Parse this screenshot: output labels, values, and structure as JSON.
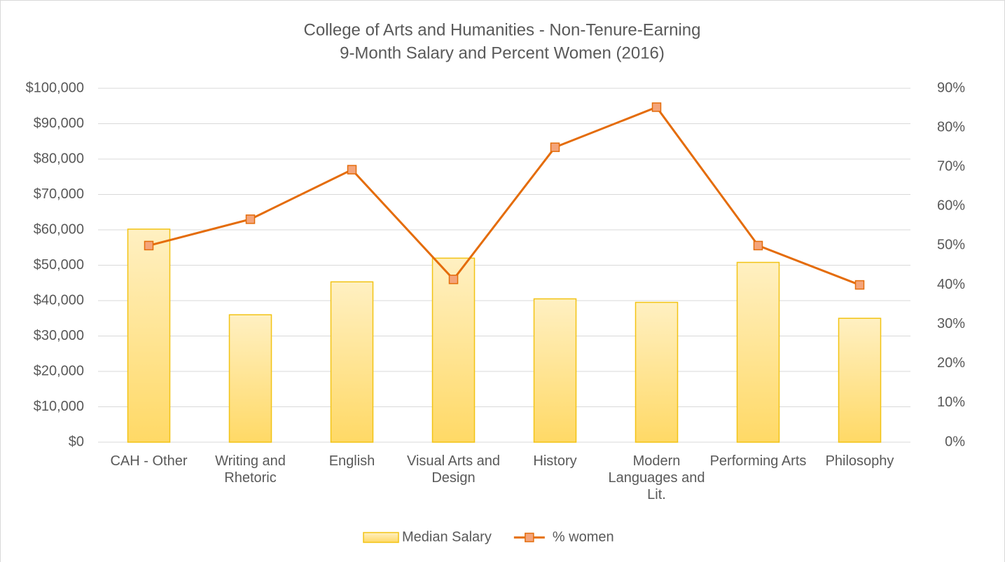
{
  "chart_data": {
    "type": "bar",
    "title": [
      "College of Arts and Humanities - Non-Tenure-Earning",
      "9-Month Salary and Percent Women (2016)"
    ],
    "categories": [
      "CAH - Other",
      "Writing and Rhetoric",
      "English",
      "Visual Arts and Design",
      "History",
      "Modern Languages and Lit.",
      "Performing Arts",
      "Philosophy"
    ],
    "series": [
      {
        "name": "Median Salary",
        "type": "bar",
        "color": "#ffd966",
        "values": [
          60200,
          36000,
          45300,
          52000,
          40500,
          39500,
          50800,
          35000
        ]
      },
      {
        "name": "% women",
        "type": "line",
        "axis": "y2",
        "color": "#e46c0a",
        "values": [
          50,
          56.7,
          69.3,
          41.4,
          75,
          85.2,
          50,
          40
        ]
      }
    ],
    "ylim": [
      0,
      100000
    ],
    "yticks": [
      {
        "value": 0,
        "label": "$0"
      },
      {
        "value": 10000,
        "label": "$10,000"
      },
      {
        "value": 20000,
        "label": "$20,000"
      },
      {
        "value": 30000,
        "label": "$30,000"
      },
      {
        "value": 40000,
        "label": "$40,000"
      },
      {
        "value": 50000,
        "label": "$50,000"
      },
      {
        "value": 60000,
        "label": "$60,000"
      },
      {
        "value": 70000,
        "label": "$70,000"
      },
      {
        "value": 80000,
        "label": "$80,000"
      },
      {
        "value": 90000,
        "label": "$90,000"
      },
      {
        "value": 100000,
        "label": "$100,000"
      }
    ],
    "y2lim": [
      0,
      90
    ],
    "y2ticks": [
      {
        "value": 0,
        "label": "0%"
      },
      {
        "value": 10,
        "label": "10%"
      },
      {
        "value": 20,
        "label": "20%"
      },
      {
        "value": 30,
        "label": "30%"
      },
      {
        "value": 40,
        "label": "40%"
      },
      {
        "value": 50,
        "label": "50%"
      },
      {
        "value": 60,
        "label": "60%"
      },
      {
        "value": 70,
        "label": "70%"
      },
      {
        "value": 80,
        "label": "80%"
      },
      {
        "value": 90,
        "label": "90%"
      }
    ],
    "grid": true,
    "legend": "bottom"
  }
}
